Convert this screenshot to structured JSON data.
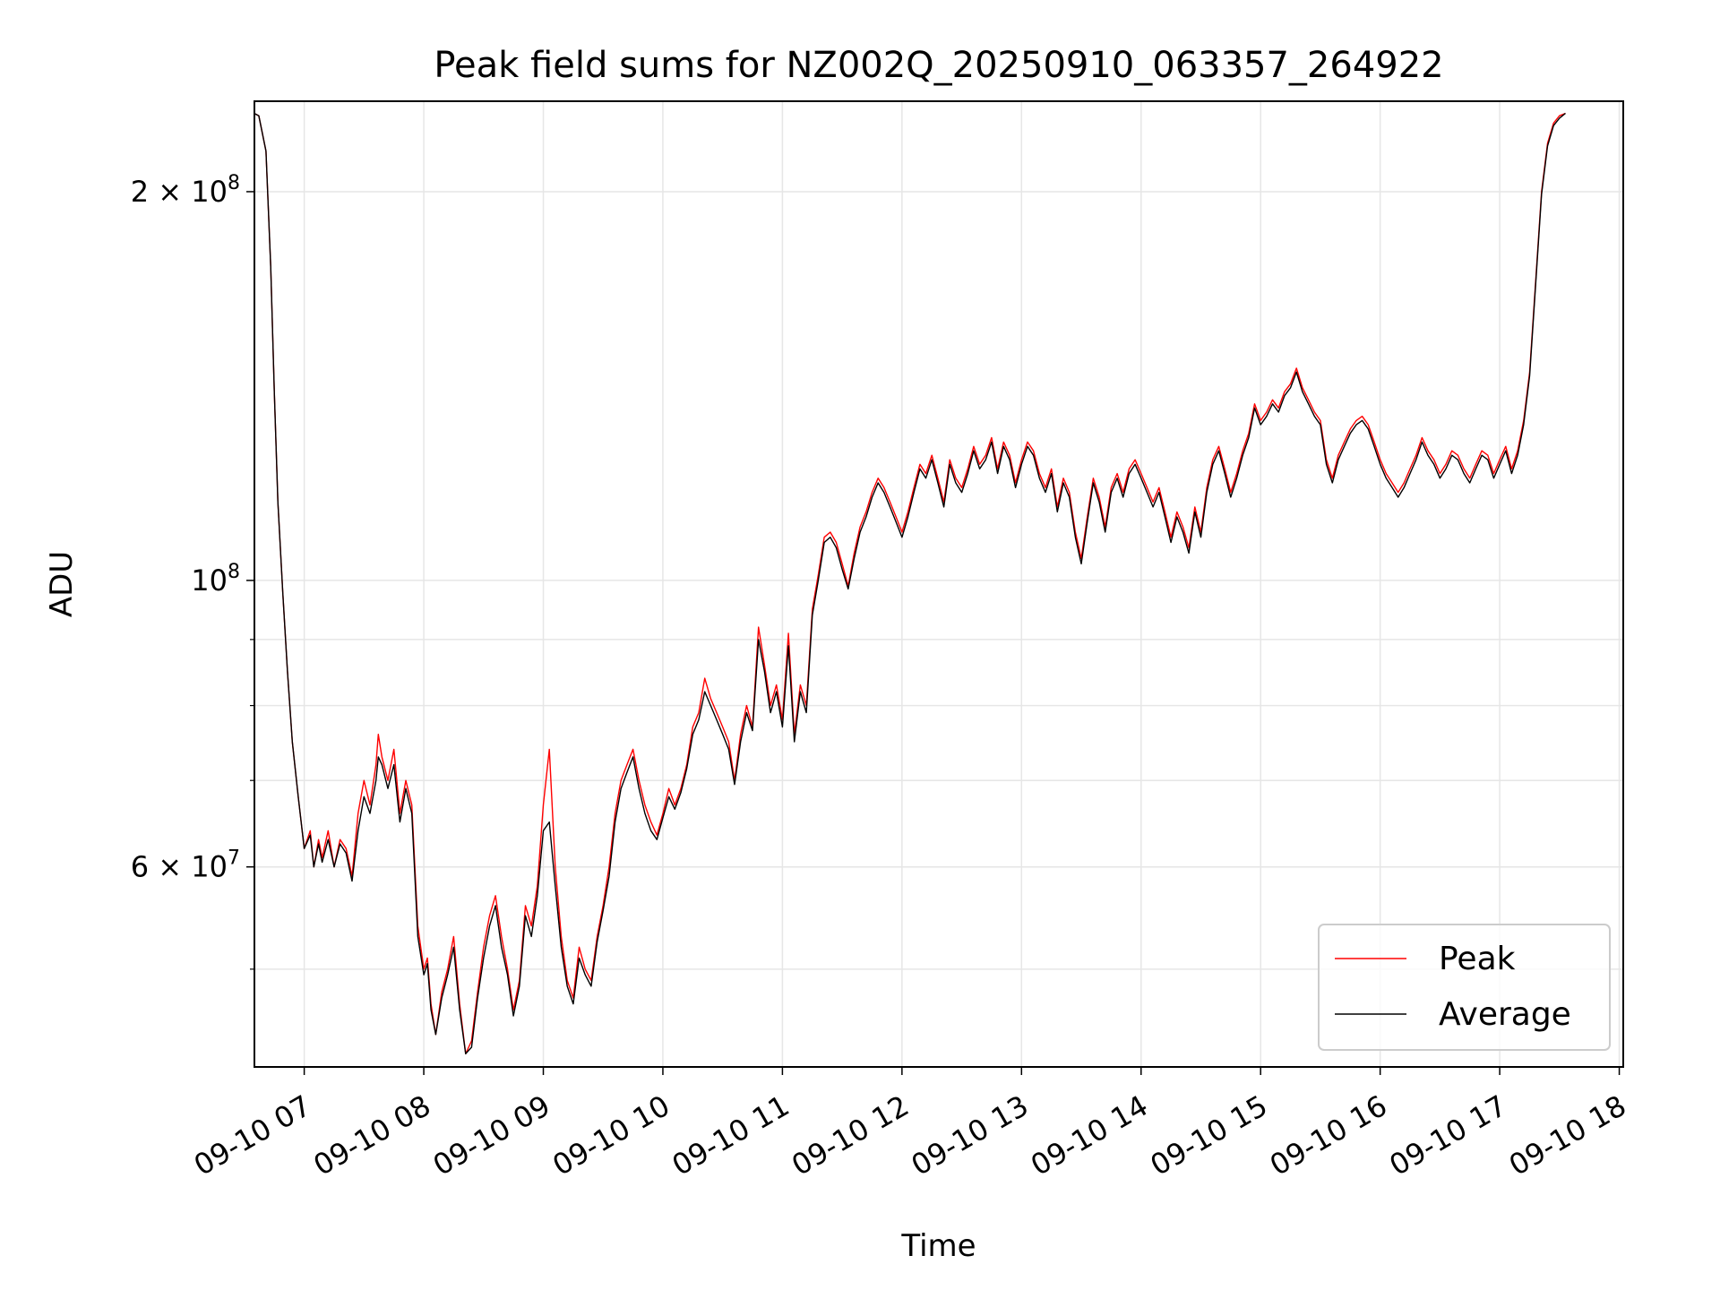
{
  "chart_data": {
    "type": "line",
    "title": "Peak field sums for NZ002Q_20250910_063357_264922",
    "xlabel": "Time",
    "ylabel": "ADU",
    "yscale": "log",
    "ylim": [
      42000000,
      235000000
    ],
    "xlim": [
      "09-10 06:35",
      "09-10 18:02"
    ],
    "grid": true,
    "legend_position": "lower right",
    "x_ticks": [
      "09-10 07",
      "09-10 08",
      "09-10 09",
      "09-10 10",
      "09-10 11",
      "09-10 12",
      "09-10 13",
      "09-10 14",
      "09-10 15",
      "09-10 16",
      "09-10 17",
      "09-10 18"
    ],
    "y_ticks": [
      {
        "value": 200000000,
        "label": "2×10⁸",
        "base": "2 × 10",
        "exp": "8"
      },
      {
        "value": 100000000,
        "label": "10⁸",
        "base": "10",
        "exp": "8"
      },
      {
        "value": 60000000,
        "label": "6×10⁷",
        "base": "6 × 10",
        "exp": "7"
      }
    ],
    "y_minor_ticks": [
      50000000,
      70000000,
      80000000,
      90000000
    ],
    "x_hours": [
      6.58,
      6.62,
      6.68,
      6.72,
      6.75,
      6.78,
      6.82,
      6.86,
      6.9,
      6.95,
      7.0,
      7.05,
      7.08,
      7.12,
      7.15,
      7.2,
      7.25,
      7.3,
      7.35,
      7.4,
      7.45,
      7.5,
      7.55,
      7.6,
      7.62,
      7.65,
      7.7,
      7.75,
      7.8,
      7.85,
      7.9,
      7.95,
      8.0,
      8.03,
      8.06,
      8.1,
      8.15,
      8.2,
      8.25,
      8.3,
      8.35,
      8.4,
      8.45,
      8.5,
      8.55,
      8.6,
      8.65,
      8.7,
      8.75,
      8.8,
      8.85,
      8.9,
      8.95,
      9.0,
      9.05,
      9.1,
      9.15,
      9.2,
      9.25,
      9.3,
      9.35,
      9.4,
      9.45,
      9.5,
      9.55,
      9.6,
      9.65,
      9.7,
      9.75,
      9.8,
      9.85,
      9.9,
      9.95,
      10.0,
      10.05,
      10.1,
      10.15,
      10.2,
      10.25,
      10.3,
      10.35,
      10.4,
      10.45,
      10.5,
      10.55,
      10.6,
      10.65,
      10.7,
      10.75,
      10.8,
      10.85,
      10.9,
      10.95,
      11.0,
      11.05,
      11.1,
      11.15,
      11.2,
      11.25,
      11.3,
      11.35,
      11.4,
      11.45,
      11.5,
      11.55,
      11.6,
      11.65,
      11.7,
      11.75,
      11.8,
      11.85,
      11.9,
      11.95,
      12.0,
      12.05,
      12.1,
      12.15,
      12.2,
      12.25,
      12.3,
      12.35,
      12.4,
      12.45,
      12.5,
      12.55,
      12.6,
      12.65,
      12.7,
      12.75,
      12.8,
      12.85,
      12.9,
      12.95,
      13.0,
      13.05,
      13.1,
      13.15,
      13.2,
      13.25,
      13.3,
      13.35,
      13.4,
      13.45,
      13.5,
      13.55,
      13.6,
      13.65,
      13.7,
      13.75,
      13.8,
      13.85,
      13.9,
      13.95,
      14.0,
      14.05,
      14.1,
      14.15,
      14.2,
      14.25,
      14.3,
      14.35,
      14.4,
      14.45,
      14.5,
      14.55,
      14.6,
      14.65,
      14.7,
      14.75,
      14.8,
      14.85,
      14.9,
      14.95,
      15.0,
      15.05,
      15.1,
      15.15,
      15.2,
      15.25,
      15.3,
      15.35,
      15.4,
      15.45,
      15.5,
      15.55,
      15.6,
      15.65,
      15.7,
      15.75,
      15.8,
      15.85,
      15.9,
      15.95,
      16.0,
      16.05,
      16.1,
      16.15,
      16.2,
      16.25,
      16.3,
      16.35,
      16.4,
      16.45,
      16.5,
      16.55,
      16.6,
      16.65,
      16.7,
      16.75,
      16.8,
      16.85,
      16.9,
      16.95,
      17.0,
      17.05,
      17.1,
      17.15,
      17.2,
      17.25,
      17.3,
      17.35,
      17.4,
      17.45,
      17.5,
      17.55,
      17.6,
      17.65,
      17.7,
      17.72,
      17.75,
      17.8,
      17.85,
      17.9,
      17.95,
      18.0,
      18.03
    ],
    "series": [
      {
        "name": "Peak",
        "color": "#ff0000",
        "values": [
          230000000,
          229000000,
          215000000,
          175000000,
          140000000,
          115000000,
          98000000,
          85000000,
          75000000,
          68000000,
          62000000,
          64000000,
          60000000,
          63000000,
          61000000,
          64000000,
          60000000,
          63000000,
          62000000,
          59000000,
          66000000,
          70000000,
          67000000,
          72000000,
          76000000,
          73000000,
          70000000,
          74000000,
          66000000,
          70000000,
          67000000,
          54000000,
          50000000,
          51000000,
          47000000,
          44500000,
          48000000,
          50000000,
          53000000,
          47000000,
          43000000,
          44000000,
          48000000,
          52000000,
          55000000,
          57000000,
          53000000,
          50000000,
          46500000,
          49000000,
          56000000,
          54000000,
          58000000,
          67000000,
          74000000,
          60000000,
          53000000,
          49000000,
          47500000,
          52000000,
          50000000,
          49000000,
          53000000,
          56000000,
          60000000,
          66000000,
          70000000,
          72000000,
          74000000,
          70000000,
          67000000,
          65000000,
          63500000,
          66000000,
          69000000,
          67000000,
          69000000,
          72000000,
          77000000,
          79000000,
          84000000,
          81000000,
          79000000,
          77000000,
          75000000,
          70000000,
          76000000,
          80000000,
          77000000,
          92000000,
          86000000,
          80000000,
          83000000,
          78000000,
          91000000,
          76000000,
          83000000,
          80000000,
          95000000,
          101000000,
          108000000,
          109000000,
          107000000,
          103000000,
          99000000,
          105000000,
          110000000,
          113000000,
          117000000,
          120000000,
          118000000,
          115000000,
          112000000,
          109000000,
          113000000,
          118000000,
          123000000,
          121000000,
          125000000,
          120000000,
          115000000,
          124000000,
          120000000,
          118000000,
          122000000,
          127000000,
          123000000,
          125000000,
          129000000,
          122000000,
          128000000,
          125000000,
          119000000,
          124000000,
          128000000,
          126000000,
          121000000,
          118000000,
          122000000,
          114000000,
          120000000,
          117000000,
          109000000,
          104000000,
          112000000,
          120000000,
          116000000,
          110000000,
          118000000,
          121000000,
          117000000,
          122000000,
          124000000,
          121000000,
          118000000,
          115000000,
          118000000,
          113000000,
          108000000,
          113000000,
          110000000,
          106000000,
          114000000,
          109000000,
          118000000,
          124000000,
          127000000,
          122000000,
          117000000,
          121000000,
          126000000,
          130000000,
          137000000,
          133000000,
          135000000,
          138000000,
          136000000,
          140000000,
          142000000,
          146000000,
          141000000,
          138000000,
          135000000,
          133000000,
          124000000,
          120000000,
          125000000,
          128000000,
          131000000,
          133000000,
          134000000,
          132000000,
          128000000,
          124000000,
          121000000,
          119000000,
          117000000,
          119000000,
          122000000,
          125000000,
          129000000,
          126000000,
          124000000,
          121000000,
          123000000,
          126000000,
          125000000,
          122000000,
          120000000,
          123000000,
          126000000,
          125000000,
          121000000,
          124000000,
          127000000,
          122000000,
          126000000,
          133000000,
          145000000,
          170000000,
          200000000,
          218000000,
          226000000,
          229000000,
          230000000
        ]
      },
      {
        "name": "Average",
        "color": "#000000",
        "values": [
          230000000,
          229000000,
          215000000,
          175000000,
          140000000,
          115000000,
          98000000,
          85000000,
          75000000,
          68000000,
          62000000,
          63500000,
          60000000,
          62500000,
          60500000,
          63000000,
          60000000,
          62500000,
          61500000,
          58500000,
          64000000,
          68000000,
          66000000,
          70000000,
          73000000,
          72000000,
          69000000,
          72000000,
          65000000,
          69000000,
          66000000,
          53000000,
          49500000,
          50500000,
          46500000,
          44500000,
          47500000,
          49500000,
          52000000,
          46500000,
          43000000,
          43500000,
          47500000,
          51000000,
          54000000,
          56000000,
          52000000,
          49500000,
          46000000,
          48500000,
          55000000,
          53000000,
          57000000,
          64000000,
          65000000,
          58000000,
          52000000,
          48500000,
          47000000,
          51000000,
          49500000,
          48500000,
          52500000,
          55500000,
          59000000,
          65000000,
          69000000,
          71000000,
          73000000,
          69000000,
          66000000,
          64000000,
          63000000,
          65500000,
          68000000,
          66500000,
          68500000,
          71500000,
          76000000,
          78000000,
          82000000,
          80000000,
          78000000,
          76000000,
          74000000,
          69500000,
          75000000,
          79000000,
          76500000,
          90000000,
          85000000,
          79000000,
          82000000,
          77000000,
          89000000,
          75000000,
          82000000,
          79000000,
          94000000,
          100000000,
          107000000,
          108000000,
          106000000,
          102000000,
          98500000,
          104000000,
          109000000,
          112000000,
          116000000,
          119000000,
          117000000,
          114000000,
          111000000,
          108000000,
          112000000,
          117000000,
          122000000,
          120000000,
          124000000,
          119000000,
          114000000,
          123000000,
          119000000,
          117000000,
          121000000,
          126000000,
          122000000,
          124000000,
          128000000,
          121000000,
          127000000,
          124000000,
          118000000,
          123000000,
          127000000,
          125000000,
          120000000,
          117000000,
          121000000,
          113000000,
          119000000,
          116000000,
          108000000,
          103000000,
          111000000,
          119000000,
          115000000,
          109000000,
          117000000,
          120000000,
          116000000,
          121000000,
          123000000,
          120000000,
          117000000,
          114000000,
          117000000,
          112000000,
          107000000,
          112000000,
          109000000,
          105000000,
          113000000,
          108000000,
          117000000,
          123000000,
          126000000,
          121000000,
          116000000,
          120000000,
          125000000,
          129000000,
          136000000,
          132000000,
          134000000,
          137000000,
          135000000,
          139000000,
          141000000,
          145000000,
          140000000,
          137000000,
          134000000,
          132000000,
          123000000,
          119000000,
          124000000,
          127000000,
          130000000,
          132000000,
          133000000,
          131000000,
          127000000,
          123000000,
          120000000,
          118000000,
          116000000,
          118000000,
          121000000,
          124000000,
          128000000,
          125000000,
          123000000,
          120000000,
          122000000,
          125000000,
          124000000,
          121000000,
          119000000,
          122000000,
          125000000,
          124000000,
          120000000,
          123000000,
          126000000,
          121000000,
          125000000,
          132000000,
          144000000,
          169000000,
          199000000,
          217000000,
          225000000,
          228000000,
          230000000
        ]
      }
    ]
  }
}
